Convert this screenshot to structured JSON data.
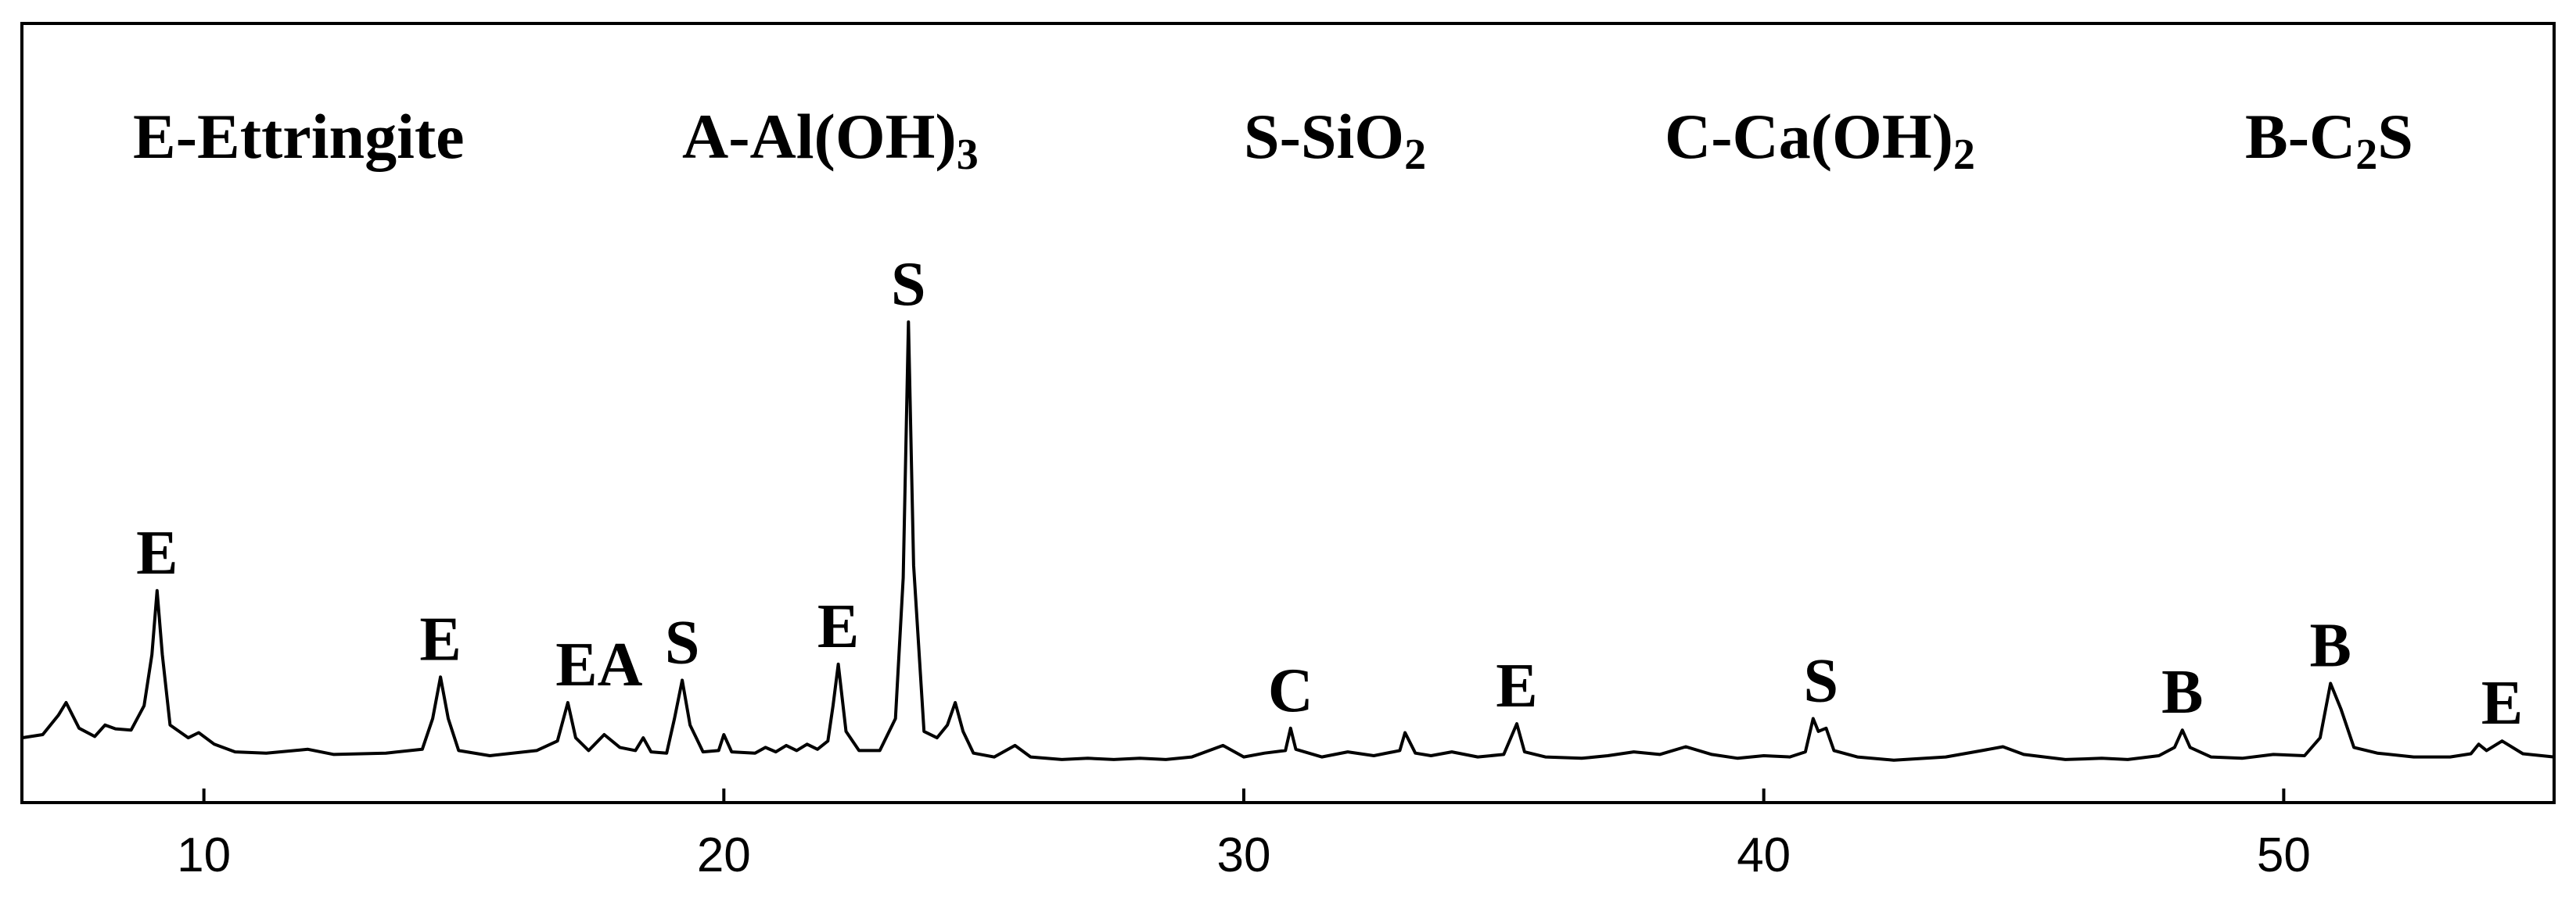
{
  "chart_data": {
    "type": "line",
    "title": "",
    "xlabel": "",
    "ylabel": "",
    "xlim": [
      6.5,
      55.2
    ],
    "ylim": [
      0,
      100
    ],
    "grid": false,
    "x_ticks": [
      "10",
      "20",
      "30",
      "40",
      "50"
    ],
    "legend": [
      {
        "code": "E",
        "sep": "-",
        "name": "Ettringite",
        "sub": "",
        "tail": ""
      },
      {
        "code": "A",
        "sep": "-",
        "name": "Al(OH)",
        "sub": "3",
        "tail": ""
      },
      {
        "code": "S",
        "sep": "-",
        "name": "SiO",
        "sub": "2",
        "tail": ""
      },
      {
        "code": "C",
        "sep": "-",
        "name": "Ca(OH)",
        "sub": "2",
        "tail": ""
      },
      {
        "code": "B",
        "sep": "-",
        "name": "C",
        "sub": "2",
        "tail": "S"
      }
    ],
    "legend_placement": "top",
    "series": [
      {
        "values": [
          [
            6.5,
            5.0
          ],
          [
            6.9,
            5.5
          ],
          [
            7.2,
            8.5
          ],
          [
            7.35,
            10.5
          ],
          [
            7.6,
            6.5
          ],
          [
            7.9,
            5.2
          ],
          [
            8.1,
            7.0
          ],
          [
            8.3,
            6.4
          ],
          [
            8.6,
            6.2
          ],
          [
            8.85,
            10.0
          ],
          [
            9.0,
            18.0
          ],
          [
            9.1,
            28.0
          ],
          [
            9.2,
            18.0
          ],
          [
            9.35,
            7.0
          ],
          [
            9.7,
            5.0
          ],
          [
            9.9,
            5.8
          ],
          [
            10.2,
            4.0
          ],
          [
            10.6,
            2.8
          ],
          [
            11.2,
            2.6
          ],
          [
            12.0,
            3.2
          ],
          [
            12.5,
            2.4
          ],
          [
            13.5,
            2.6
          ],
          [
            14.2,
            3.2
          ],
          [
            14.4,
            8.0
          ],
          [
            14.55,
            14.5
          ],
          [
            14.7,
            8.0
          ],
          [
            14.9,
            3.0
          ],
          [
            15.5,
            2.2
          ],
          [
            16.4,
            3.0
          ],
          [
            16.8,
            4.5
          ],
          [
            17.0,
            10.5
          ],
          [
            17.15,
            5.0
          ],
          [
            17.4,
            3.0
          ],
          [
            17.7,
            5.5
          ],
          [
            18.0,
            3.5
          ],
          [
            18.3,
            3.0
          ],
          [
            18.45,
            5.0
          ],
          [
            18.6,
            2.8
          ],
          [
            18.9,
            2.6
          ],
          [
            19.05,
            8.0
          ],
          [
            19.2,
            14.0
          ],
          [
            19.35,
            7.0
          ],
          [
            19.6,
            2.8
          ],
          [
            19.9,
            3.0
          ],
          [
            20.0,
            5.5
          ],
          [
            20.15,
            2.8
          ],
          [
            20.6,
            2.6
          ],
          [
            20.8,
            3.5
          ],
          [
            21.0,
            2.8
          ],
          [
            21.2,
            3.8
          ],
          [
            21.4,
            3.0
          ],
          [
            21.6,
            4.0
          ],
          [
            21.8,
            3.2
          ],
          [
            22.0,
            4.5
          ],
          [
            22.1,
            10.0
          ],
          [
            22.2,
            16.5
          ],
          [
            22.35,
            6.0
          ],
          [
            22.6,
            3.0
          ],
          [
            23.0,
            3.0
          ],
          [
            23.3,
            8.0
          ],
          [
            23.45,
            30.0
          ],
          [
            23.55,
            70.0
          ],
          [
            23.65,
            32.0
          ],
          [
            23.85,
            6.0
          ],
          [
            24.1,
            5.0
          ],
          [
            24.3,
            7.0
          ],
          [
            24.45,
            10.5
          ],
          [
            24.6,
            6.0
          ],
          [
            24.8,
            2.6
          ],
          [
            25.2,
            2.0
          ],
          [
            25.6,
            3.8
          ],
          [
            25.9,
            2.0
          ],
          [
            26.5,
            1.6
          ],
          [
            27.0,
            1.8
          ],
          [
            27.5,
            1.6
          ],
          [
            28.0,
            1.8
          ],
          [
            28.5,
            1.6
          ],
          [
            29.0,
            2.0
          ],
          [
            29.6,
            3.8
          ],
          [
            30.0,
            2.0
          ],
          [
            30.4,
            2.6
          ],
          [
            30.8,
            3.0
          ],
          [
            30.9,
            6.5
          ],
          [
            31.0,
            3.2
          ],
          [
            31.5,
            2.0
          ],
          [
            32.0,
            2.8
          ],
          [
            32.5,
            2.2
          ],
          [
            33.0,
            3.0
          ],
          [
            33.1,
            5.8
          ],
          [
            33.3,
            2.6
          ],
          [
            33.6,
            2.2
          ],
          [
            34.0,
            2.8
          ],
          [
            34.5,
            2.0
          ],
          [
            35.0,
            2.4
          ],
          [
            35.25,
            7.2
          ],
          [
            35.4,
            2.8
          ],
          [
            35.8,
            2.0
          ],
          [
            36.5,
            1.8
          ],
          [
            37.0,
            2.2
          ],
          [
            37.5,
            2.8
          ],
          [
            38.0,
            2.4
          ],
          [
            38.5,
            3.6
          ],
          [
            39.0,
            2.4
          ],
          [
            39.5,
            1.8
          ],
          [
            40.0,
            2.2
          ],
          [
            40.5,
            2.0
          ],
          [
            40.8,
            2.8
          ],
          [
            40.95,
            8.0
          ],
          [
            41.05,
            6.0
          ],
          [
            41.2,
            6.5
          ],
          [
            41.35,
            3.0
          ],
          [
            41.8,
            2.0
          ],
          [
            42.5,
            1.5
          ],
          [
            43.5,
            2.0
          ],
          [
            44.2,
            3.0
          ],
          [
            44.6,
            3.6
          ],
          [
            45.0,
            2.4
          ],
          [
            45.8,
            1.6
          ],
          [
            46.5,
            1.8
          ],
          [
            47.0,
            1.6
          ],
          [
            47.6,
            2.2
          ],
          [
            47.9,
            3.5
          ],
          [
            48.05,
            6.2
          ],
          [
            48.2,
            3.5
          ],
          [
            48.6,
            2.0
          ],
          [
            49.2,
            1.8
          ],
          [
            49.8,
            2.4
          ],
          [
            50.4,
            2.2
          ],
          [
            50.7,
            5.0
          ],
          [
            50.9,
            13.5
          ],
          [
            51.1,
            9.5
          ],
          [
            51.35,
            3.5
          ],
          [
            51.8,
            2.6
          ],
          [
            52.5,
            2.0
          ],
          [
            53.2,
            2.0
          ],
          [
            53.6,
            2.5
          ],
          [
            53.75,
            4.0
          ],
          [
            53.9,
            3.0
          ],
          [
            54.2,
            4.5
          ],
          [
            54.6,
            2.5
          ],
          [
            55.2,
            2.0
          ]
        ]
      }
    ],
    "peak_labels": [
      {
        "text": "E",
        "x": 9.1,
        "y": 28.0
      },
      {
        "text": "E",
        "x": 14.55,
        "y": 14.5
      },
      {
        "text": "EA",
        "x": 17.6,
        "y": 10.5
      },
      {
        "text": "S",
        "x": 19.2,
        "y": 14.0
      },
      {
        "text": "E",
        "x": 22.2,
        "y": 16.5
      },
      {
        "text": "S",
        "x": 23.55,
        "y": 70.0
      },
      {
        "text": "C",
        "x": 30.9,
        "y": 6.5
      },
      {
        "text": "E",
        "x": 35.25,
        "y": 7.2
      },
      {
        "text": "S",
        "x": 41.1,
        "y": 8.0
      },
      {
        "text": "B",
        "x": 48.05,
        "y": 6.2
      },
      {
        "text": "B",
        "x": 50.9,
        "y": 13.5
      },
      {
        "text": "E",
        "x": 54.2,
        "y": 4.5
      }
    ]
  }
}
